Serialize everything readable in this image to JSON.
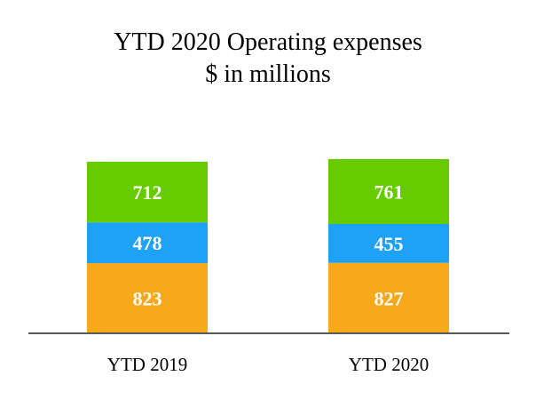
{
  "chart_data": {
    "type": "bar",
    "stacked": true,
    "title": "YTD 2020 Operating expenses",
    "subtitle": "$ in millions",
    "categories": [
      "YTD 2019",
      "YTD 2020"
    ],
    "series": [
      {
        "name": "bottom",
        "color": "#F7A81B",
        "values": [
          823,
          827
        ]
      },
      {
        "name": "middle",
        "color": "#1EA2F5",
        "values": [
          478,
          455
        ]
      },
      {
        "name": "top",
        "color": "#66CC00",
        "values": [
          712,
          761
        ]
      }
    ],
    "ylim": [
      0,
      2043
    ],
    "axis_color": "#595959",
    "xlabel": "",
    "ylabel": "",
    "grid": false,
    "legend": "none"
  }
}
